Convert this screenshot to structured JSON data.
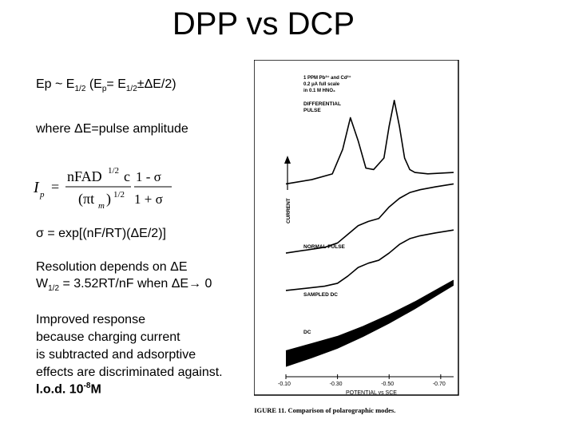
{
  "slide": {
    "title": "DPP vs DCP",
    "line_ep": {
      "a": "Ep ~ E",
      "sub1": "1/2",
      "b": " (E",
      "sub2": "p",
      "c": "= E",
      "sub3": "1/2",
      "d": "±ΔE/2)"
    },
    "line_where": "where ΔE=pulse amplitude",
    "formula": {
      "lhs": "I",
      "lhs_sub": "p",
      "eq": "=",
      "num": "nFAD",
      "num_sup": "1/2",
      "num_c": "c",
      "den": "(πt",
      "den_sub": "m",
      "den_close": ")",
      "den_sup": "1/2",
      "frac2_num": "1 - σ",
      "frac2_den": "1 + σ"
    },
    "line_sigma": "σ = exp[(nF/RT)(ΔE/2)]",
    "line_resolution": "Resolution depends on ΔE",
    "line_w": {
      "a": "W",
      "sub": "1/2",
      "b": " = 3.52RT/nF when ΔE",
      "arrow": "→",
      "c": " 0"
    },
    "para_improved": [
      "Improved response",
      "because charging current",
      "is subtracted and adsorptive",
      "effects are discriminated against."
    ],
    "line_lod": {
      "a": "l.o.d.  10",
      "sup": "-8",
      "b": "M"
    }
  },
  "chart_data": {
    "type": "line",
    "caption": "FIGURE 11.  Comparison of polarographic modes.",
    "annotation": [
      "1 PPM Pb²⁺ and Cd²⁺",
      "0.2 μA full scale",
      "in 0.1 M HNO₃"
    ],
    "xlabel": "POTENTIAL vs SCE",
    "ylabel": "CURRENT",
    "x_ticks": [
      "-0.10",
      "-0.30",
      "-0.50",
      "-0.70"
    ],
    "xlim": [
      -0.1,
      -0.75
    ],
    "series": [
      {
        "name": "DIFFERENTIAL PULSE",
        "x": [
          -0.1,
          -0.2,
          -0.28,
          -0.32,
          -0.35,
          -0.38,
          -0.41,
          -0.44,
          -0.48,
          -0.5,
          -0.52,
          -0.54,
          -0.56,
          -0.58,
          -0.6,
          -0.65,
          -0.75
        ],
        "y": [
          1.0,
          1.15,
          1.35,
          2.2,
          3.3,
          2.5,
          1.55,
          1.5,
          1.9,
          3.0,
          3.9,
          3.0,
          1.9,
          1.5,
          1.4,
          1.35,
          1.4
        ]
      },
      {
        "name": "NORMAL PULSE",
        "x": [
          -0.1,
          -0.25,
          -0.3,
          -0.34,
          -0.38,
          -0.42,
          -0.46,
          -0.5,
          -0.54,
          -0.58,
          -0.62,
          -0.68,
          -0.75
        ],
        "y": [
          -1.4,
          -1.2,
          -1.05,
          -0.75,
          -0.45,
          -0.3,
          -0.2,
          0.2,
          0.5,
          0.7,
          0.8,
          0.9,
          1.0
        ]
      },
      {
        "name": "SAMPLED DC",
        "x": [
          -0.1,
          -0.25,
          -0.3,
          -0.34,
          -0.38,
          -0.42,
          -0.46,
          -0.5,
          -0.54,
          -0.58,
          -0.62,
          -0.68,
          -0.75
        ],
        "y": [
          -2.7,
          -2.55,
          -2.45,
          -2.2,
          -1.9,
          -1.75,
          -1.65,
          -1.4,
          -1.1,
          -0.9,
          -0.8,
          -0.7,
          -0.6
        ]
      },
      {
        "name": "DC",
        "x": [
          -0.1,
          -0.2,
          -0.3,
          -0.4,
          -0.5,
          -0.6,
          -0.7,
          -0.75
        ],
        "y": [
          -4.8,
          -4.55,
          -4.3,
          -3.95,
          -3.55,
          -3.1,
          -2.6,
          -2.35
        ],
        "band": [
          0.55,
          0.5,
          0.42,
          0.36,
          0.3,
          0.25,
          0.2,
          0.18
        ]
      }
    ]
  }
}
